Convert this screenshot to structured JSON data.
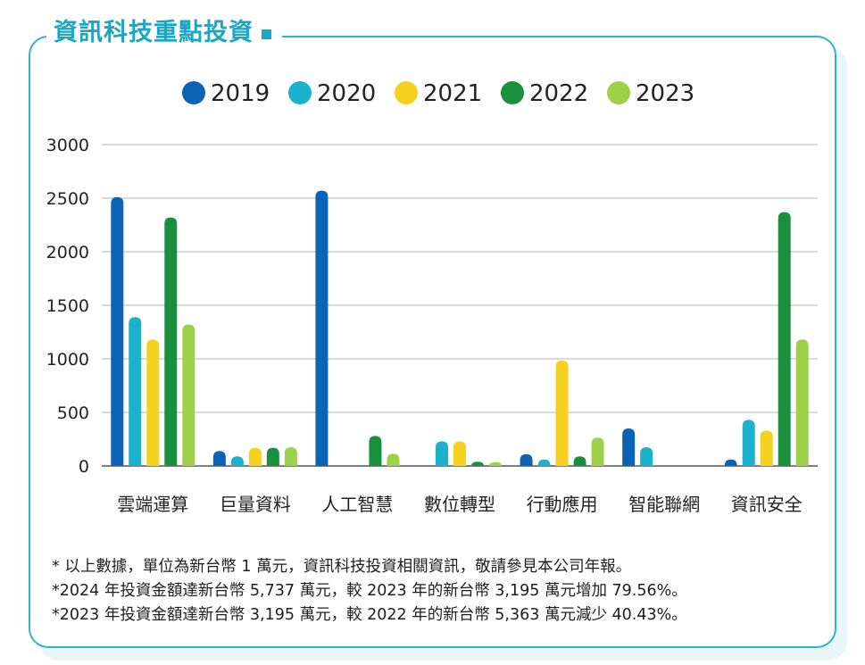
{
  "title": "資訊科技重點投資",
  "notes": [
    "* 以上數據，單位為新台幣 1 萬元，資訊科技投資相關資訊，敬請參見本公司年報。",
    "*2024 年投資金額達新台幣 5,737 萬元，較 2023 年的新台幣 3,195 萬元增加 79.56%。",
    "*2023 年投資金額達新台幣 3,195 萬元，較 2022 年的新台幣 5,363 萬元減少 40.43%。"
  ],
  "chart_data": {
    "type": "bar",
    "categories": [
      "雲端運算",
      "巨量資料",
      "人工智慧",
      "數位轉型",
      "行動應用",
      "智能聯網",
      "資訊安全"
    ],
    "series": [
      {
        "name": "2019",
        "color": "#0a63b4",
        "values": [
          2510,
          140,
          2570,
          0,
          110,
          350,
          60
        ]
      },
      {
        "name": "2020",
        "color": "#1ab2cc",
        "values": [
          1390,
          90,
          0,
          230,
          60,
          175,
          430
        ]
      },
      {
        "name": "2021",
        "color": "#f5d21e",
        "values": [
          1180,
          170,
          0,
          230,
          985,
          0,
          330
        ]
      },
      {
        "name": "2022",
        "color": "#1a8f3d",
        "values": [
          2320,
          170,
          280,
          40,
          90,
          0,
          2370
        ]
      },
      {
        "name": "2023",
        "color": "#9fd04a",
        "values": [
          1320,
          175,
          115,
          35,
          265,
          0,
          1180
        ]
      }
    ],
    "yticks": [
      "0",
      "500",
      "1000",
      "1500",
      "2000",
      "2500",
      "3000"
    ],
    "ylim": [
      0,
      3000
    ],
    "grid": true,
    "legend_position": "top"
  }
}
